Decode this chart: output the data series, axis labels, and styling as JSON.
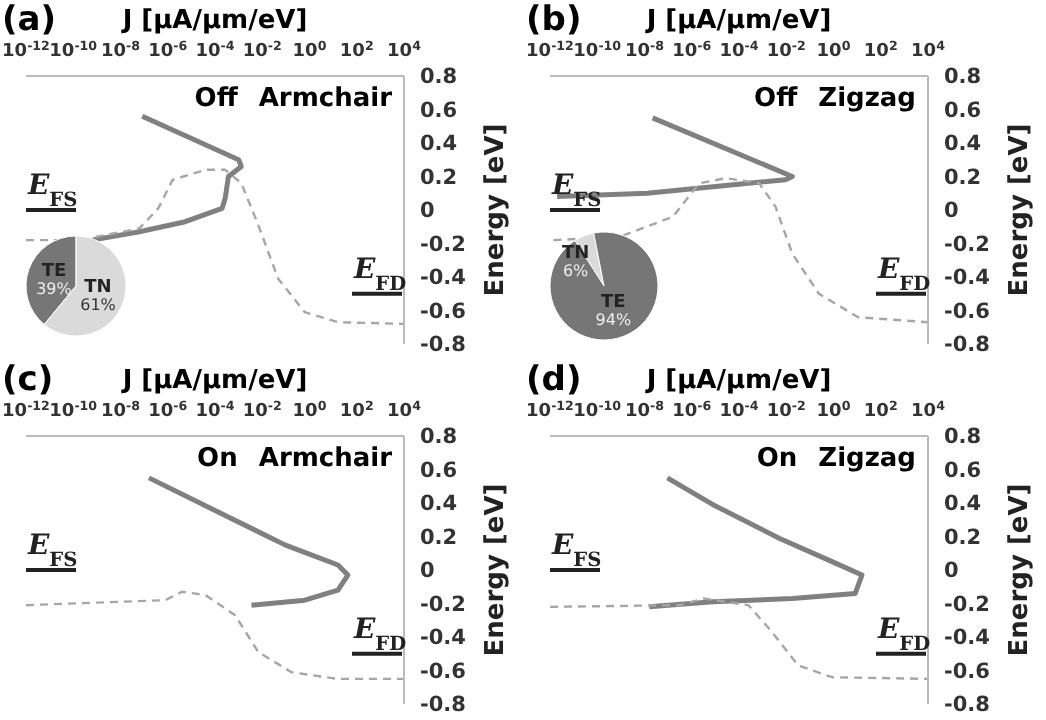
{
  "chart_data": [
    {
      "type": "line",
      "title": "(a)",
      "xlabel": "J [μA/μm/eV]",
      "ylabel": "Energy [eV]",
      "log": "x",
      "marker": "none",
      "xlim": [
        1e-12,
        10000.0
      ],
      "xticks": [
        {
          "value": 1e-12,
          "label": "10$^{-12}$"
        },
        {
          "value": 1e-10,
          "label": "10$^{-10}$"
        },
        {
          "value": 1e-08,
          "label": "10$^{-8}$"
        },
        {
          "value": 1e-06,
          "label": "10$^{-6}$"
        },
        {
          "value": 0.0001,
          "label": "10$^{-4}$"
        },
        {
          "value": 0.01,
          "label": "10$^{-2}$"
        },
        {
          "value": 1,
          "label": "10$^{0}$"
        },
        {
          "value": 100,
          "label": "10$^{2}$"
        },
        {
          "value": 10000.0,
          "label": "10$^{4}$"
        }
      ],
      "ylim": [
        -0.8,
        0.8
      ],
      "yticks": [
        -0.8,
        -0.6,
        -0.4,
        -0.2,
        0,
        0.2,
        0.4,
        0.6,
        0.8
      ],
      "annotations": [
        "Off Armchair"
      ],
      "ref_lines": [
        {
          "axis": "y",
          "value": 0,
          "label": "E$_{FS}$"
        },
        {
          "axis": "y",
          "value": -0.5,
          "label": "E$_{FD}$"
        }
      ],
      "series": [
        {
          "color": "#808080",
          "line_style": "solid",
          "x": [
            8.3e-08,
            0.001,
            0.0013,
            0.00037,
            0.00027,
            0.0002,
            5.5e-06,
            6.3e-08,
            6.3e-10
          ],
          "values": [
            0.56,
            0.3,
            0.26,
            0.2,
            0.07,
            0.01,
            -0.07,
            -0.13,
            -0.18
          ]
        },
        {
          "color": "#a6a6a6",
          "line_style": "dashed",
          "x": [
            1e-12,
            1.8e-10,
            6.3e-08,
            4e-07,
            1.6e-06,
            4e-05,
            0.00027,
            0.0013,
            0.0068,
            0.047,
            0.63,
            16,
            10000.0
          ],
          "values": [
            -0.18,
            -0.18,
            -0.11,
            0.01,
            0.18,
            0.24,
            0.24,
            0.16,
            -0.09,
            -0.41,
            -0.61,
            -0.67,
            -0.68
          ]
        }
      ]
    },
    {
      "type": "line",
      "title": "(b)",
      "xlabel": "J [μA/μm/eV]",
      "ylabel": "Energy [eV]",
      "log": "x",
      "marker": "none",
      "xlim": [
        1e-12,
        10000.0
      ],
      "xticks": [
        {
          "value": 1e-12,
          "label": "10$^{-12}$"
        },
        {
          "value": 1e-10,
          "label": "10$^{-10}$"
        },
        {
          "value": 1e-08,
          "label": "10$^{-8}$"
        },
        {
          "value": 1e-06,
          "label": "10$^{-6}$"
        },
        {
          "value": 0.0001,
          "label": "10$^{-4}$"
        },
        {
          "value": 0.01,
          "label": "10$^{-2}$"
        },
        {
          "value": 1,
          "label": "10$^{0}$"
        },
        {
          "value": 100,
          "label": "10$^{2}$"
        },
        {
          "value": 10000.0,
          "label": "10$^{4}$"
        }
      ],
      "ylim": [
        -0.8,
        0.8
      ],
      "yticks": [
        -0.8,
        -0.6,
        -0.4,
        -0.2,
        0,
        0.2,
        0.4,
        0.6,
        0.8
      ],
      "annotations": [
        "Off Zigzag"
      ],
      "ref_lines": [
        {
          "axis": "y",
          "value": 0,
          "label": "E$_{FS}$"
        },
        {
          "axis": "y",
          "value": -0.5,
          "label": "E$_{FD}$"
        }
      ],
      "series": [
        {
          "color": "#808080",
          "line_style": "solid",
          "x": [
            2.2e-08,
            0.018,
            0.0093,
            0.00025,
            1.3e-08,
            2e-12
          ],
          "values": [
            0.55,
            0.2,
            0.18,
            0.16,
            0.1,
            0.08
          ]
        },
        {
          "color": "#a6a6a6",
          "line_style": "dashed",
          "x": [
            1.4e-12,
            8.9e-10,
            1.6e-07,
            2.1e-06,
            2.8e-05,
            0.00071,
            0.0035,
            0.018,
            0.24,
            11,
            10000.0
          ],
          "values": [
            -0.18,
            -0.16,
            -0.04,
            0.16,
            0.19,
            0.16,
            0.02,
            -0.26,
            -0.5,
            -0.64,
            -0.67
          ]
        }
      ]
    },
    {
      "type": "line",
      "title": "(c)",
      "xlabel": "J [μA/μm/eV]",
      "ylabel": "Energy [eV]",
      "log": "x",
      "marker": "none",
      "xlim": [
        1e-12,
        10000.0
      ],
      "xticks": [
        {
          "value": 1e-12,
          "label": "10$^{-12}$"
        },
        {
          "value": 1e-10,
          "label": "10$^{-10}$"
        },
        {
          "value": 1e-08,
          "label": "10$^{-8}$"
        },
        {
          "value": 1e-06,
          "label": "10$^{-6}$"
        },
        {
          "value": 0.0001,
          "label": "10$^{-4}$"
        },
        {
          "value": 0.01,
          "label": "10$^{-2}$"
        },
        {
          "value": 1,
          "label": "10$^{0}$"
        },
        {
          "value": 100,
          "label": "10$^{2}$"
        },
        {
          "value": 10000.0,
          "label": "10$^{4}$"
        }
      ],
      "ylim": [
        -0.8,
        0.8
      ],
      "yticks": [
        -0.8,
        -0.6,
        -0.4,
        -0.2,
        0,
        0.2,
        0.4,
        0.6,
        0.8
      ],
      "annotations": [
        "On Armchair"
      ],
      "ref_lines": [
        {
          "axis": "y",
          "value": 0,
          "label": "E$_{FS}$"
        },
        {
          "axis": "y",
          "value": -0.5,
          "label": "E$_{FD}$"
        }
      ],
      "series": [
        {
          "color": "#808080",
          "line_style": "solid",
          "x": [
            1.6e-07,
            0.091,
            16,
            42,
            16,
            0.63,
            0.0035
          ],
          "values": [
            0.55,
            0.15,
            0.03,
            -0.03,
            -0.12,
            -0.18,
            -0.21
          ]
        },
        {
          "color": "#a6a6a6",
          "line_style": "dashed",
          "x": [
            1e-12,
            7.9e-07,
            4e-06,
            4e-05,
            0.00071,
            0.0068,
            0.17,
            16,
            10000.0
          ],
          "values": [
            -0.21,
            -0.18,
            -0.13,
            -0.15,
            -0.27,
            -0.49,
            -0.61,
            -0.65,
            -0.65
          ]
        }
      ]
    },
    {
      "type": "line",
      "title": "(d)",
      "xlabel": "J [μA/μm/eV]",
      "ylabel": "Energy [eV]",
      "log": "x",
      "marker": "none",
      "xlim": [
        1e-12,
        10000.0
      ],
      "xticks": [
        {
          "value": 1e-12,
          "label": "10$^{-12}$"
        },
        {
          "value": 1e-10,
          "label": "10$^{-10}$"
        },
        {
          "value": 1e-08,
          "label": "10$^{-8}$"
        },
        {
          "value": 1e-06,
          "label": "10$^{-6}$"
        },
        {
          "value": 0.0001,
          "label": "10$^{-4}$"
        },
        {
          "value": 0.01,
          "label": "10$^{-2}$"
        },
        {
          "value": 1,
          "label": "10$^{0}$"
        },
        {
          "value": 100,
          "label": "10$^{2}$"
        },
        {
          "value": 10000.0,
          "label": "10$^{4}$"
        }
      ],
      "ylim": [
        -0.8,
        0.8
      ],
      "yticks": [
        -0.8,
        -0.6,
        -0.4,
        -0.2,
        0,
        0.2,
        0.4,
        0.6,
        0.8
      ],
      "annotations": [
        "On Zigzag"
      ],
      "ref_lines": [
        {
          "axis": "y",
          "value": 0,
          "label": "E$_{FS}$"
        },
        {
          "axis": "y",
          "value": -0.5,
          "label": "E$_{FD}$"
        }
      ],
      "series": [
        {
          "color": "#808080",
          "line_style": "solid",
          "x": [
            9.3e-08,
            7.9e-06,
            0.005,
            0.87,
            16,
            8.3,
            0.018,
            7.9e-06,
            1.6e-08
          ],
          "values": [
            0.55,
            0.39,
            0.19,
            0.05,
            -0.03,
            -0.14,
            -0.17,
            -0.19,
            -0.22
          ]
        },
        {
          "color": "#a6a6a6",
          "line_style": "dashed",
          "x": [
            1e-12,
            3.2e-07,
            3.2e-06,
            2.8e-05,
            0.00025,
            0.0025,
            0.032,
            0.87,
            10000.0
          ],
          "values": [
            -0.22,
            -0.21,
            -0.17,
            -0.19,
            -0.21,
            -0.37,
            -0.57,
            -0.64,
            -0.65
          ]
        }
      ]
    },
    {
      "type": "pie",
      "categories": [
        "TE",
        "TN"
      ],
      "values": [
        39,
        61
      ],
      "colors": [
        "#767676",
        "#dadada"
      ],
      "value_labels": [
        "39%",
        "61%"
      ]
    },
    {
      "type": "pie",
      "categories": [
        "TN",
        "TE"
      ],
      "values": [
        6,
        94
      ],
      "colors": [
        "#dadada",
        "#767676"
      ],
      "value_labels": [
        "6%",
        "94%"
      ]
    }
  ]
}
